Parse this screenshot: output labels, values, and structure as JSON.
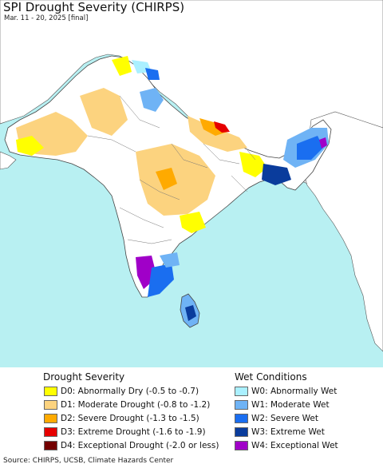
{
  "title": "SPI Drought Severity (CHIRPS)",
  "subtitle": "Mar. 11 - 20, 2025 [final]",
  "colors": {
    "ocean": "#b8f0f2",
    "land": "#ffffff",
    "outside_land": "#ffffff",
    "border": "#555555"
  },
  "legend": {
    "drought": {
      "title": "Drought Severity",
      "items": [
        {
          "label": "D0: Abnormally Dry (-0.5 to -0.7)",
          "color": "#ffff00"
        },
        {
          "label": "D1: Moderate Drought (-0.8 to -1.2)",
          "color": "#fcd37f"
        },
        {
          "label": "D2: Severe Drought (-1.3 to -1.5)",
          "color": "#ffaa00"
        },
        {
          "label": "D3: Extreme Drought (-1.6 to -1.9)",
          "color": "#e60000"
        },
        {
          "label": "D4: Exceptional Drought (-2.0 or less)",
          "color": "#730000"
        }
      ]
    },
    "wet": {
      "title": "Wet Conditions",
      "items": [
        {
          "label": "W0: Abnormally Wet",
          "color": "#aaf0ff"
        },
        {
          "label": "W1: Moderate Wet",
          "color": "#6fb3f5"
        },
        {
          "label": "W2: Severe Wet",
          "color": "#1a6ef0"
        },
        {
          "label": "W3: Extreme Wet",
          "color": "#0a3c9c"
        },
        {
          "label": "W4: Exceptional Wet",
          "color": "#a000c8"
        }
      ]
    }
  },
  "source": "Source: CHIRPS, UCSB, Climate Hazards Center"
}
